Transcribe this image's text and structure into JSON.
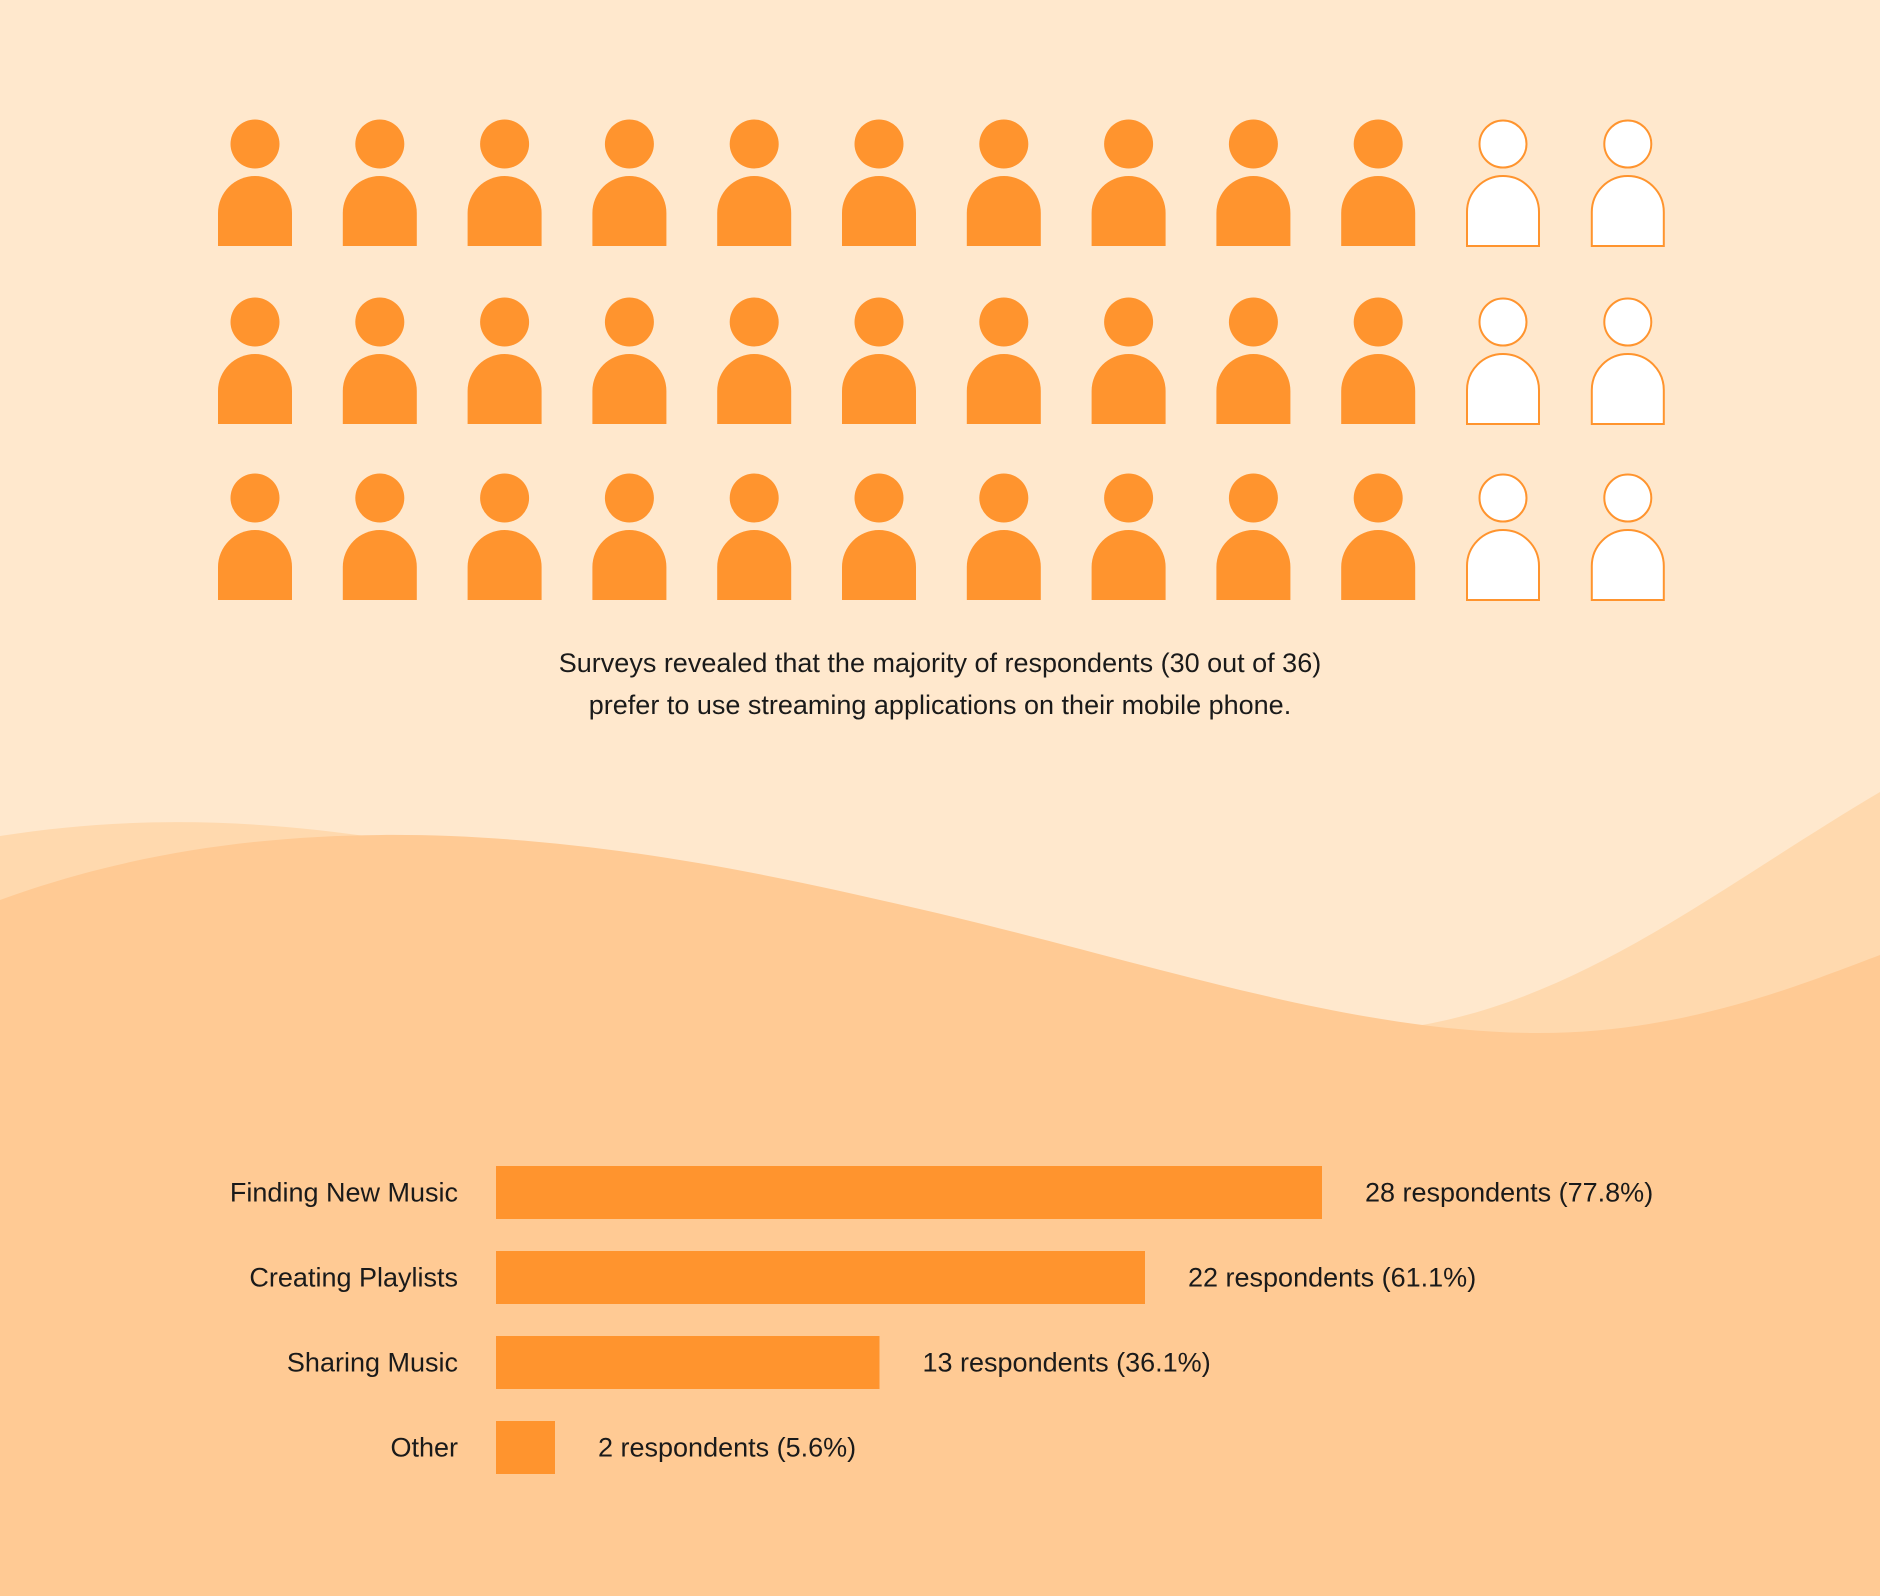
{
  "colors": {
    "background_top": "#FFE8CD",
    "wave_light": "#FFD9AE",
    "wave_main": "#FFCA94",
    "accent": "#FF942E",
    "empty_fill": "#FFFFFF",
    "text": "#1a1a1a"
  },
  "pictogram": {
    "total": 36,
    "highlighted": 30,
    "columns": 12,
    "rows": 3,
    "highlighted_columns_per_row": 10
  },
  "caption": {
    "line1": "Surveys revealed that the majority of respondents (30 out of 36)",
    "line2": "prefer to use streaming applications on their mobile phone."
  },
  "chart_data": {
    "type": "bar",
    "orientation": "horizontal",
    "categories": [
      "Finding New Music",
      "Creating Playlists",
      "Sharing Music",
      "Other"
    ],
    "values": [
      28,
      22,
      13,
      2
    ],
    "value_labels": [
      "28 respondents (77.8%)",
      "22 respondents (61.1%)",
      "13 respondents (36.1%)",
      "2 respondents (5.6%)"
    ],
    "total": 36,
    "grid": false,
    "legend": "none"
  }
}
